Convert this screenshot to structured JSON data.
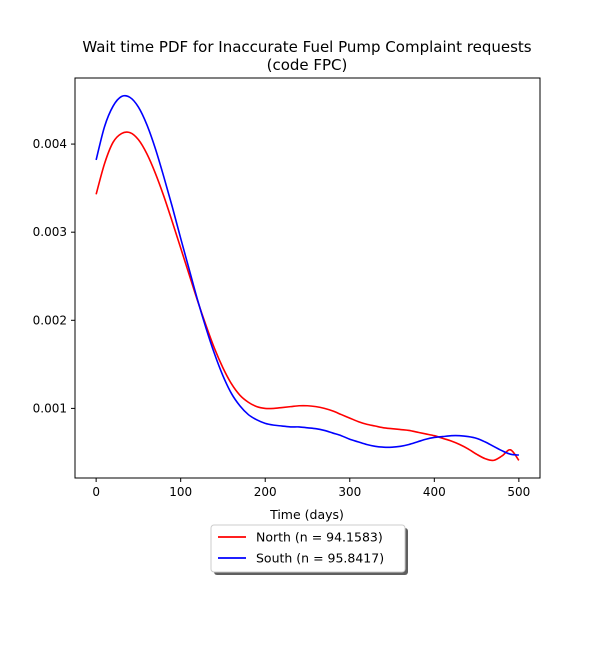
{
  "chart_data": {
    "type": "line",
    "title": "Wait time PDF for Inaccurate Fuel Pump Complaint  requests",
    "subtitle": "(code FPC)",
    "xlabel": "Time (days)",
    "ylabel": "",
    "xlim": [
      -25,
      525
    ],
    "ylim": [
      0.00021,
      0.00475
    ],
    "xticks": [
      0,
      100,
      200,
      300,
      400,
      500
    ],
    "yticks": [
      0.001,
      0.002,
      0.003,
      0.004
    ],
    "ytick_labels": [
      "0.001",
      "0.002",
      "0.003",
      "0.004"
    ],
    "grid": false,
    "legend_position": "below-center",
    "x": [
      0,
      10,
      20,
      30,
      40,
      50,
      60,
      70,
      80,
      90,
      100,
      110,
      120,
      130,
      140,
      150,
      160,
      170,
      180,
      190,
      200,
      210,
      220,
      230,
      240,
      250,
      260,
      270,
      280,
      290,
      300,
      310,
      320,
      330,
      340,
      350,
      360,
      370,
      380,
      390,
      400,
      410,
      420,
      430,
      440,
      450,
      460,
      470,
      480,
      490,
      500
    ],
    "series": [
      {
        "name": "North (n = 94.1583)",
        "color": "#ff0000",
        "values": [
          0.00343,
          0.00378,
          0.00402,
          0.00412,
          0.00413,
          0.00405,
          0.00389,
          0.00367,
          0.00341,
          0.00312,
          0.00282,
          0.00252,
          0.00222,
          0.00194,
          0.00168,
          0.00146,
          0.00128,
          0.00115,
          0.00107,
          0.00102,
          0.001,
          0.001,
          0.00101,
          0.00102,
          0.00103,
          0.00103,
          0.00102,
          0.001,
          0.00097,
          0.00093,
          0.00089,
          0.00085,
          0.00082,
          0.0008,
          0.00078,
          0.00077,
          0.00076,
          0.00075,
          0.00073,
          0.00071,
          0.00069,
          0.00066,
          0.00063,
          0.00059,
          0.00054,
          0.00048,
          0.00043,
          0.00041,
          0.00046,
          0.00053,
          0.00041
        ]
      },
      {
        "name": "South (n = 95.8417)",
        "color": "#0000ff",
        "values": [
          0.00382,
          0.0042,
          0.00443,
          0.00454,
          0.00453,
          0.00442,
          0.00422,
          0.00395,
          0.00363,
          0.00329,
          0.00293,
          0.00258,
          0.00223,
          0.00191,
          0.00162,
          0.00137,
          0.00117,
          0.00103,
          0.00093,
          0.00087,
          0.00083,
          0.00081,
          0.0008,
          0.00079,
          0.00079,
          0.00078,
          0.00077,
          0.00075,
          0.00072,
          0.00069,
          0.00065,
          0.00062,
          0.00059,
          0.00057,
          0.00056,
          0.00056,
          0.00057,
          0.00059,
          0.00062,
          0.00065,
          0.00067,
          0.00068,
          0.00069,
          0.00069,
          0.00068,
          0.00066,
          0.00062,
          0.00057,
          0.00052,
          0.00048,
          0.00047
        ]
      }
    ]
  }
}
